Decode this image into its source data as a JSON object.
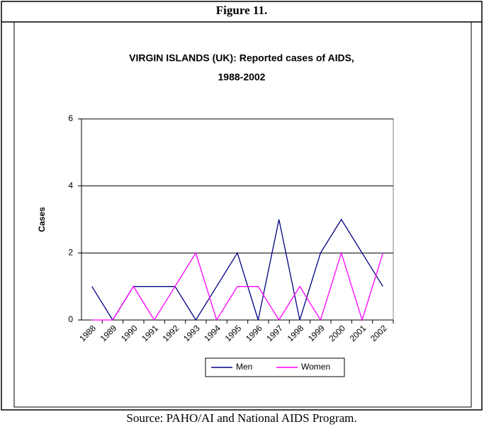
{
  "figure_label": "Figure 11.",
  "source": "Source: PAHO/AI and National AIDS Program.",
  "chart_data": {
    "type": "line",
    "title": [
      "VIRGIN ISLANDS (UK): Reported cases of AIDS,",
      "1988-2002"
    ],
    "y_label": "Cases",
    "categories": [
      "1988",
      "1989",
      "1990",
      "1991",
      "1992",
      "1993",
      "1994",
      "1995",
      "1996",
      "1997",
      "1998",
      "1999",
      "2000",
      "2001",
      "2002"
    ],
    "series": [
      {
        "name": "Men",
        "color": "#000080",
        "values": [
          1,
          0,
          1,
          1,
          1,
          0,
          1,
          2,
          0,
          3,
          0,
          2,
          3,
          2,
          1
        ]
      },
      {
        "name": "Women",
        "color": "#ff00ff",
        "values": [
          0,
          0,
          1,
          0,
          1,
          2,
          0,
          1,
          1,
          0,
          1,
          0,
          2,
          0,
          2
        ]
      }
    ],
    "ylim": [
      0,
      6
    ],
    "yticks": [
      0,
      2,
      4,
      6
    ],
    "grid": true,
    "legend": "bottom"
  }
}
